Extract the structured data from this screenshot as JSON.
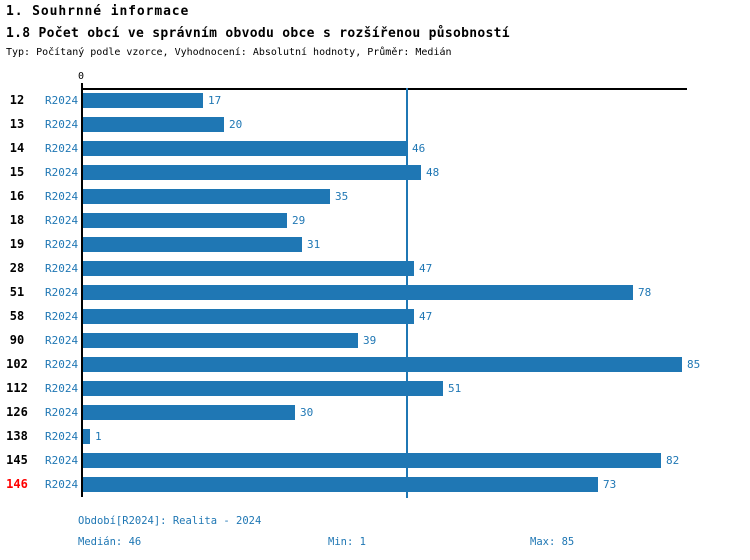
{
  "header": {
    "title": "1. Souhrnné informace",
    "subtitle": "1.8 Počet obcí ve správním obvodu obce s rozšířenou působností",
    "meta": "Typ: Počítaný podle vzorce, Vyhodnocení: Absolutní hodnoty, Průměr: Medián"
  },
  "chart_data": {
    "type": "bar",
    "orientation": "horizontal",
    "title": "1.8 Počet obcí ve správním obvodu obce s rozšířenou působností",
    "categories": [
      "12",
      "13",
      "14",
      "15",
      "16",
      "18",
      "19",
      "28",
      "51",
      "58",
      "90",
      "102",
      "112",
      "126",
      "138",
      "145",
      "146"
    ],
    "series_label": "R2024",
    "values": [
      17,
      20,
      46,
      48,
      35,
      29,
      31,
      47,
      78,
      47,
      39,
      85,
      51,
      30,
      1,
      82,
      73
    ],
    "highlighted_category": "146",
    "axis_zero_label": "0",
    "median_line_value": 46,
    "xlim": [
      0,
      85.7
    ],
    "grid": false,
    "bar_color": "#1f77b4",
    "highlight_color": "#ff0000"
  },
  "footer": {
    "period": "Období[R2024]: Realita - 2024",
    "median": "Medián: 46",
    "min": "Min: 1",
    "max": "Max: 85"
  }
}
